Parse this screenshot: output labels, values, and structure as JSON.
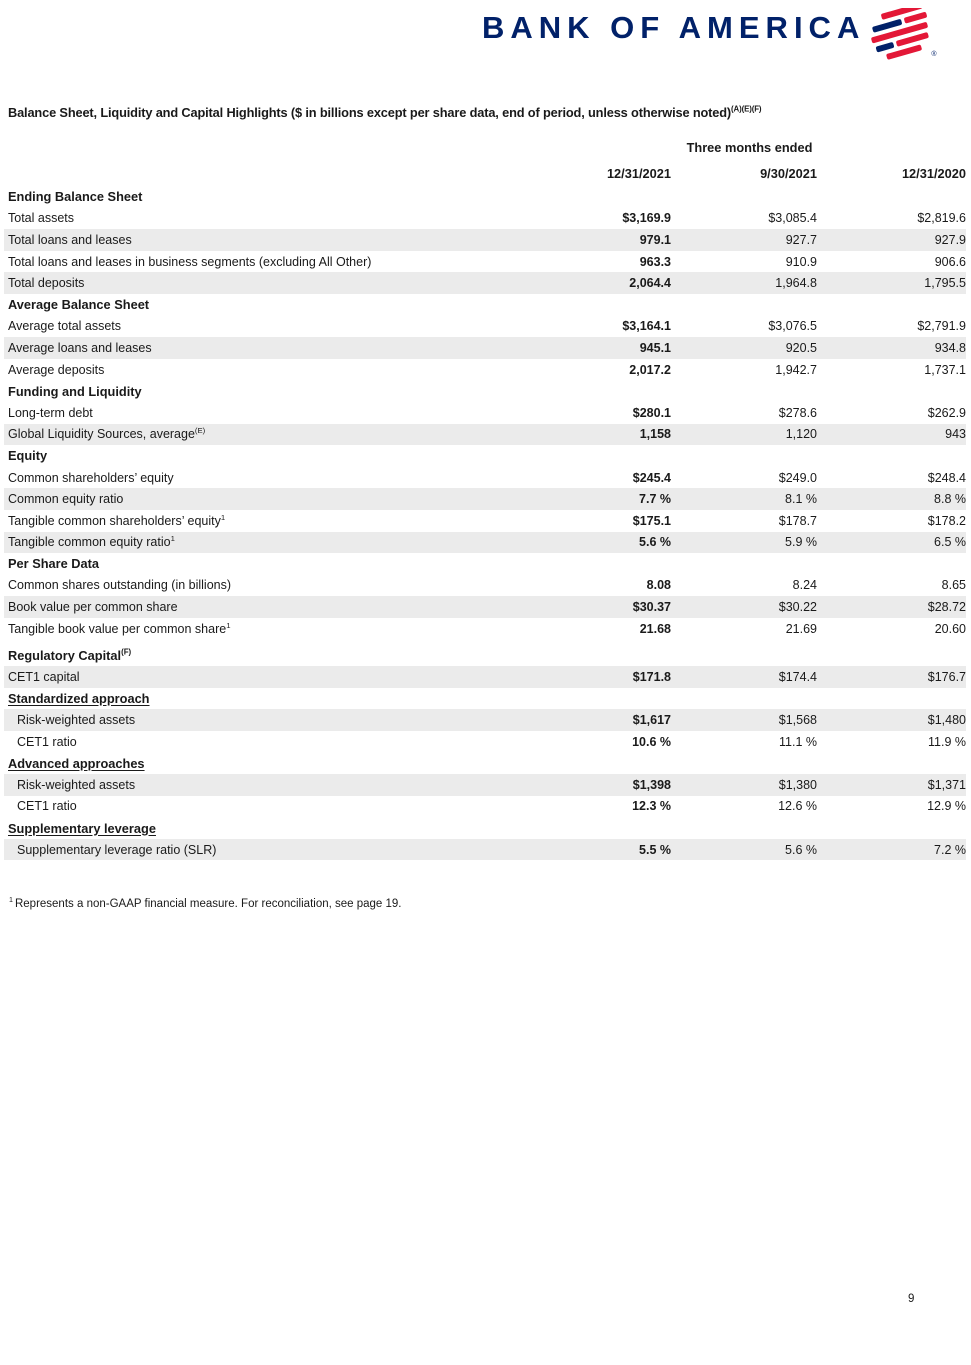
{
  "logo": {
    "text": "BANK OF AMERICA",
    "registered": "®",
    "brand_navy": "#012169",
    "brand_red": "#E31837"
  },
  "title": {
    "text": "Balance Sheet, Liquidity and Capital Highlights ($ in billions except per share data, end of period, unless otherwise noted)",
    "sup": "(A)(E)(F)"
  },
  "table": {
    "period_header": "Three months ended",
    "columns": [
      "12/31/2021",
      "9/30/2021",
      "12/31/2020"
    ],
    "rows": [
      {
        "label": "Ending Balance Sheet",
        "type": "section"
      },
      {
        "label": "Total assets",
        "values": [
          "$3,169.9",
          "$3,085.4",
          "$2,819.6"
        ]
      },
      {
        "label": "Total loans and leases",
        "shaded": true,
        "values": [
          "979.1",
          "927.7",
          "927.9"
        ]
      },
      {
        "label": "Total loans and leases in business segments (excluding All Other)",
        "values": [
          "963.3",
          "910.9",
          "906.6"
        ]
      },
      {
        "label": "Total deposits",
        "shaded": true,
        "values": [
          "2,064.4",
          "1,964.8",
          "1,795.5"
        ]
      },
      {
        "label": "Average Balance Sheet",
        "type": "section"
      },
      {
        "label": "Average total assets",
        "values": [
          "$3,164.1",
          "$3,076.5",
          "$2,791.9"
        ]
      },
      {
        "label": "Average loans and leases",
        "shaded": true,
        "values": [
          "945.1",
          "920.5",
          "934.8"
        ]
      },
      {
        "label": "Average deposits",
        "values": [
          "2,017.2",
          "1,942.7",
          "1,737.1"
        ]
      },
      {
        "label": "Funding and Liquidity",
        "type": "section"
      },
      {
        "label": "Long-term debt",
        "values": [
          "$280.1",
          "$278.6",
          "$262.9"
        ]
      },
      {
        "label": "Global Liquidity Sources, average",
        "sup": "(E)",
        "shaded": true,
        "values": [
          "1,158",
          "1,120",
          "943"
        ]
      },
      {
        "label": "Equity",
        "type": "section"
      },
      {
        "label": "Common shareholders’ equity",
        "values": [
          "$245.4",
          "$249.0",
          "$248.4"
        ]
      },
      {
        "label": "Common equity ratio",
        "shaded": true,
        "values": [
          "7.7 %",
          "8.1 %",
          "8.8 %"
        ]
      },
      {
        "label": "Tangible common shareholders’ equity",
        "sup": "1",
        "values": [
          "$175.1",
          "$178.7",
          "$178.2"
        ]
      },
      {
        "label": "Tangible common equity ratio",
        "sup": "1",
        "shaded": true,
        "values": [
          "5.6 %",
          "5.9 %",
          "6.5 %"
        ]
      },
      {
        "label": "Per Share Data",
        "type": "section"
      },
      {
        "label": "Common shares outstanding (in billions)",
        "values": [
          "8.08",
          "8.24",
          "8.65"
        ]
      },
      {
        "label": "Book value per common share",
        "shaded": true,
        "values": [
          "$30.37",
          "$30.22",
          "$28.72"
        ]
      },
      {
        "label": "Tangible book value per common share",
        "sup": "1",
        "values": [
          "21.68",
          "21.69",
          "20.60"
        ]
      },
      {
        "label": "Regulatory Capital",
        "sup": "(F)",
        "type": "section",
        "extra_space": true
      },
      {
        "label": "CET1 capital",
        "shaded": true,
        "values": [
          "$171.8",
          "$174.4",
          "$176.7"
        ]
      },
      {
        "label": "Standardized approach",
        "type": "section_underline"
      },
      {
        "label": "Risk-weighted assets",
        "indent": true,
        "shaded": true,
        "values": [
          "$1,617",
          "$1,568",
          "$1,480"
        ]
      },
      {
        "label": "CET1 ratio",
        "indent": true,
        "values": [
          "10.6 %",
          "11.1 %",
          "11.9 %"
        ]
      },
      {
        "label": "Advanced approaches",
        "type": "section_underline"
      },
      {
        "label": "Risk-weighted assets",
        "indent": true,
        "shaded": true,
        "values": [
          "$1,398",
          "$1,380",
          "$1,371"
        ]
      },
      {
        "label": "CET1 ratio",
        "indent": true,
        "values": [
          "12.3 %",
          "12.6 %",
          "12.9 %"
        ]
      },
      {
        "label": "Supplementary leverage",
        "type": "section_underline"
      },
      {
        "label": "Supplementary leverage ratio (SLR)",
        "indent": true,
        "shaded": true,
        "values": [
          "5.5 %",
          "5.6 %",
          "7.2 %"
        ]
      }
    ]
  },
  "footnote": {
    "sup": "1",
    "text": "Represents a non-GAAP financial measure. For reconciliation, see page 19."
  },
  "page_number": "9",
  "colors": {
    "row_shade": "#ebebeb",
    "text": "#1a1a1a"
  }
}
